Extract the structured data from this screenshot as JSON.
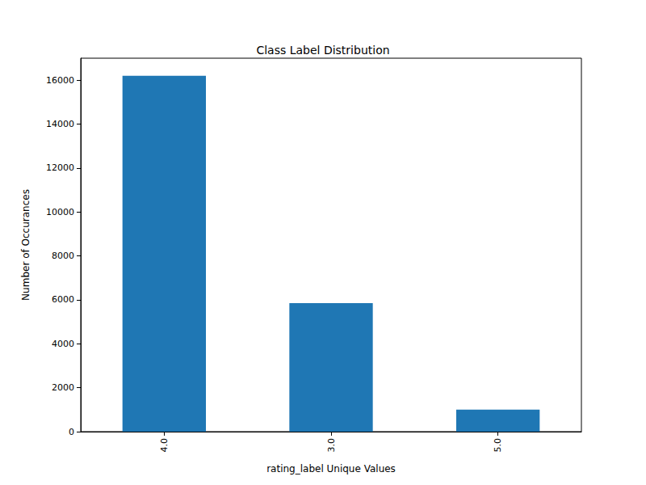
{
  "chart_data": {
    "type": "bar",
    "title": "Class Label Distribution",
    "x_label": "rating_label Unique Values",
    "y_label": "Number of Occurances",
    "categories": [
      "4.0",
      "3.0",
      "5.0"
    ],
    "values": [
      16200,
      5850,
      1000
    ],
    "color": "#1f77b4",
    "ylim": [
      0,
      17000
    ],
    "yticks": [
      0,
      2000,
      4000,
      6000,
      8000,
      10000,
      12000,
      14000,
      16000
    ],
    "grid": false
  }
}
